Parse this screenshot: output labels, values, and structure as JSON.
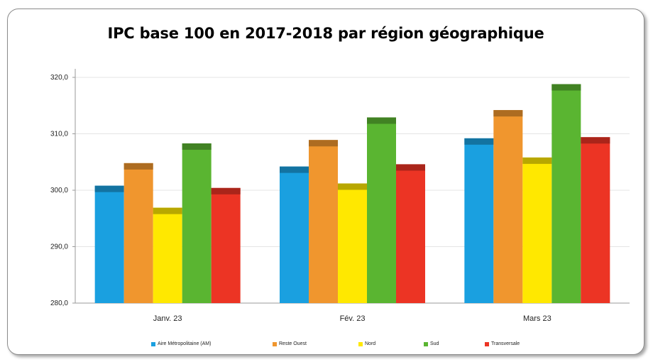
{
  "chart_data": {
    "type": "bar",
    "title": "IPC base 100 en 2017-2018  par région géographique",
    "xlabel": "",
    "ylabel": "",
    "ylim": [
      280,
      320
    ],
    "yticks": [
      "280,0",
      "290,0",
      "300,0",
      "310,0",
      "320,0"
    ],
    "categories": [
      "Janv. 23",
      "Fév. 23",
      "Mars 23"
    ],
    "series": [
      {
        "name": "Aire Métropolitaine   (AM)",
        "color": "#1aa0e0",
        "values": [
          300.8,
          304.2,
          309.2
        ]
      },
      {
        "name": "Reste Ouest",
        "color": "#f0962e",
        "values": [
          304.8,
          308.9,
          314.2
        ]
      },
      {
        "name": "Nord",
        "color": "#ffe800",
        "values": [
          296.9,
          301.2,
          305.8
        ]
      },
      {
        "name": "Sud",
        "color": "#5ab531",
        "values": [
          308.3,
          312.9,
          318.8
        ]
      },
      {
        "name": "Transversale",
        "color": "#ec3424",
        "values": [
          300.4,
          304.6,
          309.4
        ]
      }
    ],
    "grid": true,
    "legend_position": "bottom"
  }
}
